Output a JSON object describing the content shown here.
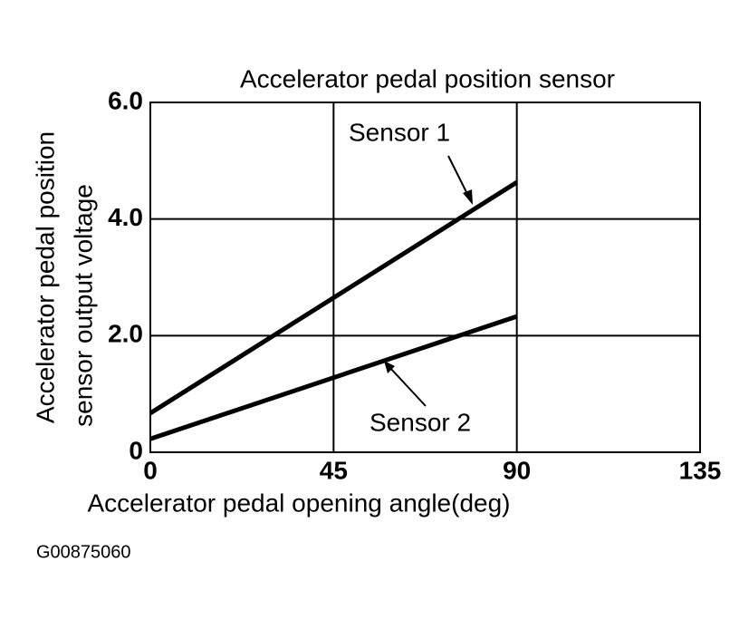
{
  "chart_data": {
    "type": "line",
    "title": "Accelerator pedal position sensor",
    "x_label": "Accelerator pedal opening angle(deg)",
    "y_label": [
      "Accelerator pedal position",
      "sensor output voltage"
    ],
    "x": [
      0,
      90
    ],
    "series": [
      {
        "name": "Sensor 1",
        "color": "#000000",
        "values": [
          0.67,
          4.63
        ]
      },
      {
        "name": "Sensor 2",
        "color": "#000000",
        "values": [
          0.23,
          2.33
        ]
      }
    ],
    "xlim": [
      0,
      135
    ],
    "xticks": [
      0,
      45,
      90,
      135
    ],
    "ylim": [
      0,
      6
    ],
    "yticks": [
      {
        "value": 0,
        "label": "0"
      },
      {
        "value": 2,
        "label": "2.0"
      },
      {
        "value": 4,
        "label": "4.0"
      },
      {
        "value": 6,
        "label": "6.0"
      }
    ],
    "grid": true,
    "code": "G00875060"
  }
}
